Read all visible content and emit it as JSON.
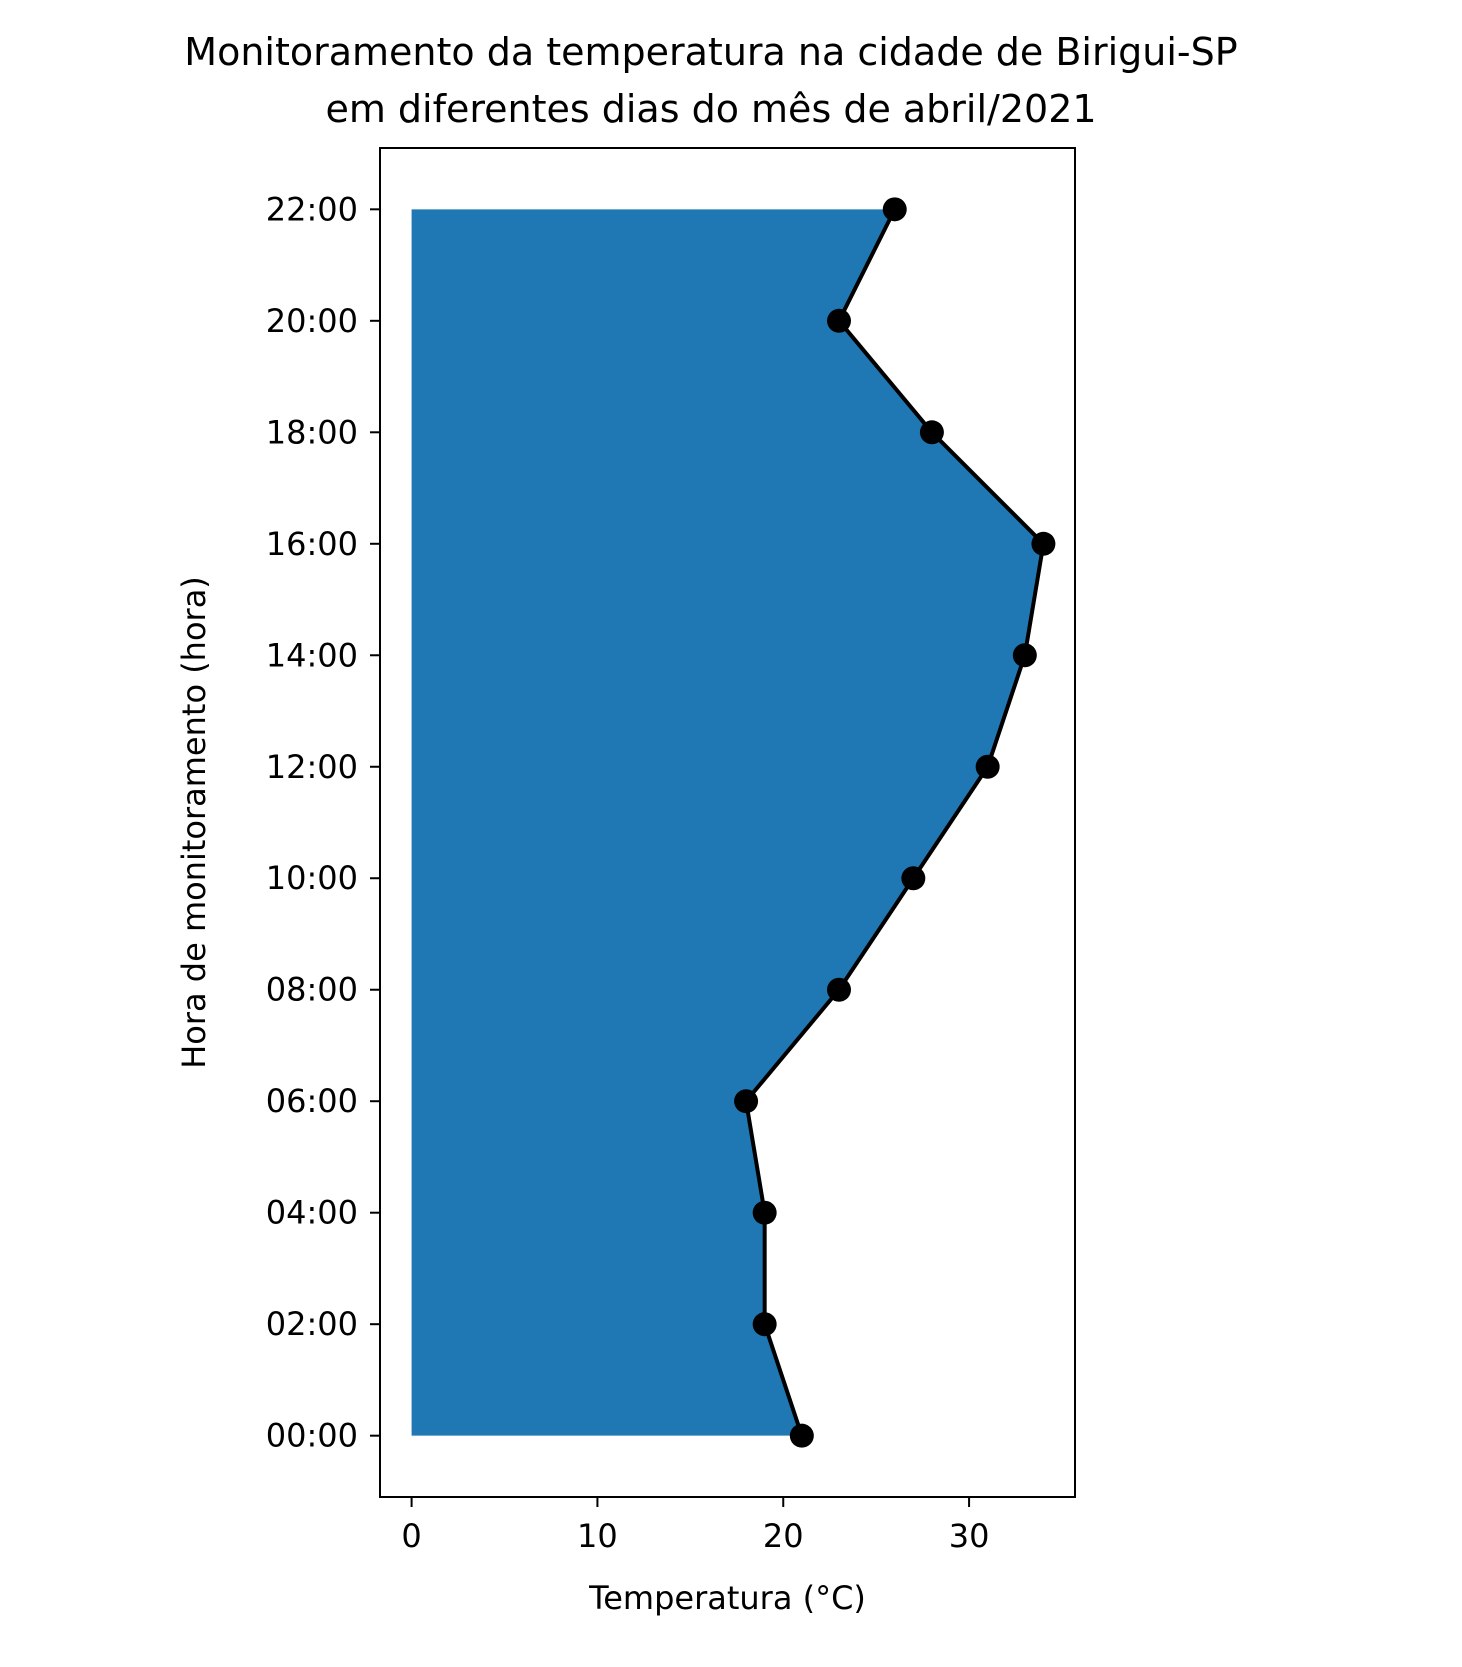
{
  "chart_data": {
    "type": "area",
    "orientation": "horizontal",
    "title": "Monitoramento da temperatura na cidade de Birigui-SP",
    "subtitle": "em diferentes dias do mês de abril/2021",
    "xlabel": "Temperatura (°C)",
    "ylabel": "Hora de monitoramento (hora)",
    "xlim": [
      -1.7,
      35.7
    ],
    "ylim": [
      -1.1,
      23.1
    ],
    "x_ticks": [
      0,
      10,
      20,
      30
    ],
    "y_ticks": [
      "00:00",
      "02:00",
      "04:00",
      "06:00",
      "08:00",
      "10:00",
      "12:00",
      "14:00",
      "16:00",
      "18:00",
      "20:00",
      "22:00"
    ],
    "grid": false,
    "series": [
      {
        "hours": [
          "00:00",
          "02:00",
          "04:00",
          "06:00",
          "08:00",
          "10:00",
          "12:00",
          "14:00",
          "16:00",
          "18:00",
          "20:00",
          "22:00"
        ],
        "temperatures": [
          21,
          19,
          19,
          18,
          23,
          27,
          31,
          33,
          34,
          28,
          23,
          26
        ]
      }
    ],
    "colors": {
      "fill": "#1f77b4",
      "line": "#000000",
      "marker": "#000000"
    }
  }
}
